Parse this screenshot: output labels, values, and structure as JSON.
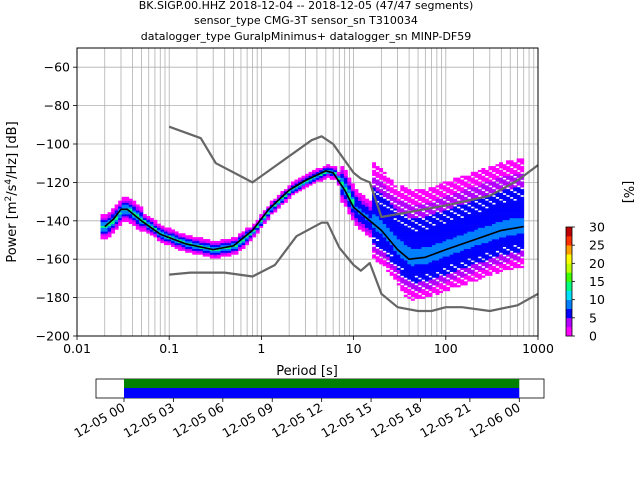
{
  "chart_data": [
    {
      "type": "heatmap",
      "title_lines": [
        "BK.SIGP.00.HHZ   2018-12-04 -- 2018-12-05  (47/47 segments)",
        "sensor_type CMG-3T sensor_sn T310034",
        "datalogger_type GuralpMinimus+ datalogger_sn MINP-DF59"
      ],
      "xlabel": "Period [s]",
      "ylabel_parts": [
        "Power [m",
        "2",
        "/s",
        "4",
        "/Hz] [dB]"
      ],
      "x_scale": "log",
      "xlim": [
        0.01,
        1000
      ],
      "ylim": [
        -200,
        -50
      ],
      "x_ticks": [
        0.01,
        0.1,
        1,
        10,
        100,
        1000
      ],
      "x_tick_labels": [
        "0.01",
        "0.1",
        "1",
        "10",
        "100",
        "1000"
      ],
      "y_ticks": [
        -200,
        -180,
        -160,
        -140,
        -120,
        -100,
        -80,
        -60
      ],
      "y_tick_labels": [
        "−200",
        "−180",
        "−160",
        "−140",
        "−120",
        "−100",
        "−80",
        "−60"
      ],
      "grid": true,
      "colorbar": {
        "label": "[%]",
        "range": [
          0,
          30
        ],
        "ticks": [
          0,
          5,
          10,
          15,
          20,
          25,
          30
        ],
        "tick_labels": [
          "0",
          "5",
          "10",
          "15",
          "20",
          "25",
          "30"
        ],
        "colors": [
          "#ff00ff",
          "#b400ff",
          "#0000ff",
          "#0080ff",
          "#00e0ff",
          "#00ff80",
          "#40ff00",
          "#c0ff00",
          "#ffff00",
          "#ffa000",
          "#ff3000",
          "#c00000"
        ]
      },
      "series": [
        {
          "role": "noise-model-high",
          "color": "#666666",
          "points": [
            [
              0.1,
              -91
            ],
            [
              0.22,
              -97
            ],
            [
              0.32,
              -110
            ],
            [
              0.8,
              -120
            ],
            [
              3.5,
              -98
            ],
            [
              4.5,
              -96
            ],
            [
              6,
              -100
            ],
            [
              10,
              -115
            ],
            [
              12,
              -118
            ],
            [
              15,
              -120
            ],
            [
              20,
              -138
            ],
            [
              35,
              -136
            ],
            [
              100,
              -132
            ],
            [
              300,
              -127
            ],
            [
              600,
              -119
            ],
            [
              1000,
              -111
            ]
          ]
        },
        {
          "role": "noise-model-low",
          "color": "#666666",
          "points": [
            [
              0.1,
              -168
            ],
            [
              0.17,
              -167
            ],
            [
              0.4,
              -167
            ],
            [
              0.8,
              -169
            ],
            [
              1.4,
              -163
            ],
            [
              2.4,
              -148
            ],
            [
              4.5,
              -141
            ],
            [
              5.2,
              -141
            ],
            [
              7,
              -154
            ],
            [
              10,
              -163
            ],
            [
              12,
              -166
            ],
            [
              15,
              -162
            ],
            [
              20,
              -178
            ],
            [
              30,
              -185
            ],
            [
              50,
              -187
            ],
            [
              70,
              -187
            ],
            [
              100,
              -185
            ],
            [
              150,
              -185
            ],
            [
              300,
              -187
            ],
            [
              600,
              -184
            ],
            [
              1000,
              -178
            ]
          ]
        },
        {
          "role": "mean",
          "color": "#000000",
          "points": [
            [
              0.02,
              -143
            ],
            [
              0.025,
              -139
            ],
            [
              0.03,
              -134
            ],
            [
              0.035,
              -134
            ],
            [
              0.05,
              -140
            ],
            [
              0.08,
              -147
            ],
            [
              0.15,
              -152
            ],
            [
              0.3,
              -155
            ],
            [
              0.5,
              -153
            ],
            [
              0.8,
              -145
            ],
            [
              1.2,
              -134
            ],
            [
              2,
              -124
            ],
            [
              3,
              -119
            ],
            [
              5,
              -114
            ],
            [
              6,
              -115
            ],
            [
              8,
              -124
            ],
            [
              10,
              -133
            ],
            [
              15,
              -140
            ],
            [
              20,
              -145
            ],
            [
              30,
              -155
            ],
            [
              40,
              -160
            ],
            [
              60,
              -159
            ],
            [
              100,
              -155
            ],
            [
              200,
              -150
            ],
            [
              400,
              -145
            ],
            [
              700,
              -143
            ]
          ]
        }
      ],
      "timeline": {
        "tick_labels": [
          "12-05 00",
          "12-05 03",
          "12-05 06",
          "12-05 09",
          "12-05 12",
          "12-05 15",
          "12-05 18",
          "12-05 21",
          "12-06 00"
        ],
        "span_hours": [
          0,
          24
        ],
        "view_hours": [
          -1.7,
          25.5
        ],
        "bars": [
          {
            "color": "#008000",
            "from_hours": 0,
            "to_hours": 24
          },
          {
            "color": "#0000ff",
            "from_hours": 0,
            "to_hours": 24
          }
        ]
      }
    }
  ]
}
